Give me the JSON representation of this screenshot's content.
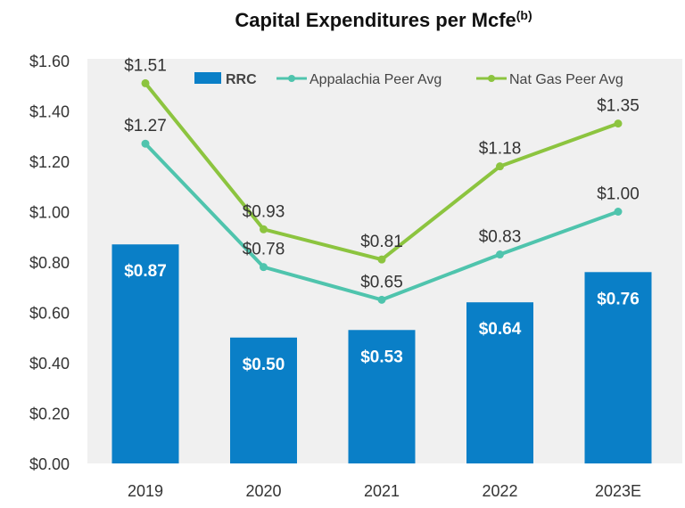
{
  "chart_data": {
    "type": "bar+line",
    "title": "Capital Expenditures per Mcfe",
    "title_superscript": "(b)",
    "categories": [
      "2019",
      "2020",
      "2021",
      "2022",
      "2023E"
    ],
    "ylim": [
      0,
      1.6
    ],
    "yticks": [
      "$0.00",
      "$0.20",
      "$0.40",
      "$0.60",
      "$0.80",
      "$1.00",
      "$1.20",
      "$1.40",
      "$1.60"
    ],
    "grid": false,
    "legend_position": "top",
    "series": [
      {
        "name": "RRC",
        "kind": "bar",
        "color": "#0a7fc7",
        "values": [
          0.87,
          0.5,
          0.53,
          0.64,
          0.76
        ],
        "labels": [
          "$0.87",
          "$0.50",
          "$0.53",
          "$0.64",
          "$0.76"
        ]
      },
      {
        "name": "Appalachia Peer Avg",
        "kind": "line",
        "color": "#4fc4ad",
        "values": [
          1.27,
          0.78,
          0.65,
          0.83,
          1.0
        ],
        "labels": [
          "$1.27",
          "$0.78",
          "$0.65",
          "$0.83",
          "$1.00"
        ]
      },
      {
        "name": "Nat Gas Peer Avg",
        "kind": "line",
        "color": "#8cc43f",
        "values": [
          1.51,
          0.93,
          0.81,
          1.18,
          1.35
        ],
        "labels": [
          "$1.51",
          "$0.93",
          "$0.81",
          "$1.18",
          "$1.35"
        ]
      }
    ]
  }
}
